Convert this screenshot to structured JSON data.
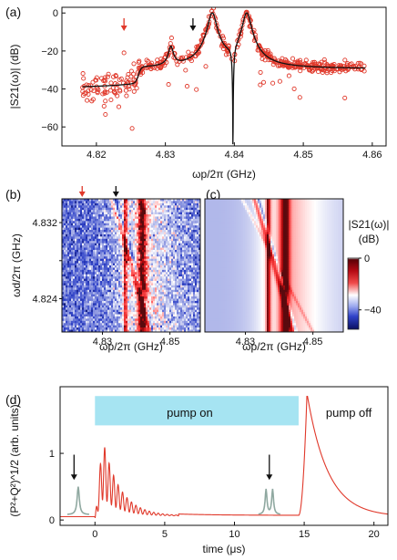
{
  "panel_labels": [
    "(a)",
    "(b)",
    "(c)",
    "(d)"
  ],
  "annotations": {
    "pump_on": "pump on",
    "pump_off": "pump off"
  },
  "colors": {
    "data_red": "#e0382a",
    "fit_black": "#111111",
    "pump_box": "#a6e4f2",
    "peak_grey": "#8fa8a0",
    "arrow_red": "#e0382a",
    "arrow_black": "#111111"
  },
  "chart_data": [
    {
      "panel": "(a)",
      "type": "scatter",
      "xlabel": "ωp/2π (GHz)",
      "ylabel": "|S21(ω)| (dB)",
      "xlim": [
        4.815,
        4.862
      ],
      "ylim": [
        -70,
        3
      ],
      "x_ticks": [
        4.82,
        4.83,
        4.84,
        4.85,
        4.86
      ],
      "x_tick_labels": [
        "4.82",
        "4.83",
        "4.84",
        "4.85",
        "4.86"
      ],
      "y_ticks": [
        0,
        -20,
        -40,
        -60
      ],
      "y_tick_labels": [
        "0",
        "−20",
        "−40",
        "−60"
      ],
      "series": [
        {
          "style": "circles",
          "color": "red",
          "x_range": [
            4.818,
            4.859
          ],
          "noise_db": 4
        },
        {
          "style": "line",
          "color": "black",
          "x_range": [
            4.818,
            4.859
          ]
        }
      ],
      "features": {
        "baseline_db": -40,
        "resonances": [
          {
            "x": 4.8368,
            "peak_db": 0
          },
          {
            "x": 4.8418,
            "peak_db": 0
          },
          {
            "x": 4.8398,
            "dip_db": -66
          }
        ],
        "small_features": [
          {
            "x": 4.8262,
            "db": -35
          },
          {
            "x": 4.8308,
            "db": -18
          }
        ],
        "outliers": [
          {
            "x": 4.824,
            "y": -21
          },
          {
            "x": 4.8345,
            "y": -20
          }
        ]
      },
      "markers": [
        {
          "x": 4.824,
          "color": "red",
          "kind": "down-arrow"
        },
        {
          "x": 4.834,
          "color": "black",
          "kind": "down-arrow"
        }
      ]
    },
    {
      "panel": "(b)",
      "type": "heatmap",
      "xlabel": "ωp/2π (GHz)",
      "ylabel": "ωd/2π (GHz)",
      "x_tick_labels": [
        "4.83",
        "4.85"
      ],
      "y_tick_labels": [
        "4.832",
        "4.824"
      ],
      "x_ticks": [
        4.83,
        4.85
      ],
      "y_ticks": [
        4.832,
        4.824
      ],
      "xlim": [
        4.818,
        4.859
      ],
      "ylim": [
        4.8205,
        4.8345
      ],
      "markers": [
        {
          "x": 4.824,
          "color": "red",
          "kind": "down-arrow"
        },
        {
          "x": 4.834,
          "color": "black",
          "kind": "down-arrow"
        }
      ],
      "content": "measured"
    },
    {
      "panel": "(c)",
      "type": "heatmap",
      "xlabel": "ωp/2π (GHz)",
      "x_tick_labels": [
        "4.83",
        "4.85"
      ],
      "x_ticks": [
        4.83,
        4.85
      ],
      "xlim": [
        4.818,
        4.859
      ],
      "content": "simulated",
      "colorbar": {
        "label_top": "|S21(ω)|",
        "label_unit": "(dB)",
        "ticks": [
          0,
          -40
        ],
        "tick_labels": [
          "0",
          "−40"
        ],
        "range": [
          -55,
          0
        ],
        "colors": [
          "#ffffff",
          "#e8141e",
          "#6a0008",
          "#ffffff",
          "#3a4fd1",
          "#0b1061"
        ]
      }
    },
    {
      "panel": "(d)",
      "type": "line",
      "xlabel": "time (μs)",
      "ylabel": "(P²+Q²)^1/2 (arb. units)",
      "xlim": [
        -2.5,
        21
      ],
      "ylim": [
        -0.08,
        2.0
      ],
      "x_ticks": [
        0,
        5,
        10,
        15,
        20
      ],
      "x_tick_labels": [
        "0",
        "5",
        "10",
        "15",
        "20"
      ],
      "y_ticks": [
        0,
        1
      ],
      "y_tick_labels": [
        "0",
        "1"
      ],
      "series": [
        {
          "color": "red",
          "segments": {
            "pre_pump_level": 0.05,
            "oscillation_start": 0.0,
            "oscillation_peak": 1.05,
            "oscillation_peak_time": 0.7,
            "oscillation_period": 0.32,
            "decay_until": 6.0,
            "plateau_level": 0.1,
            "pump_off_time": 14.6,
            "pump_off_peak": 1.9,
            "pump_off_peak_time": 15.2,
            "post_decay_tau": 1.5
          }
        }
      ],
      "pump_window": [
        0,
        14.6
      ],
      "annotations": [
        {
          "text": "pump on",
          "x": 6.8,
          "y": 1.62
        },
        {
          "text": "pump off",
          "x": 18.2,
          "y": 1.62
        }
      ],
      "arrows": [
        {
          "x": -1.5,
          "y_from": 0.98,
          "y_to": 0.6
        },
        {
          "x": 12.5,
          "y_from": 0.98,
          "y_to": 0.6
        }
      ],
      "insets": [
        {
          "x": -1.2,
          "kind": "single-peak"
        },
        {
          "x": 12.5,
          "kind": "double-peak"
        }
      ]
    }
  ]
}
